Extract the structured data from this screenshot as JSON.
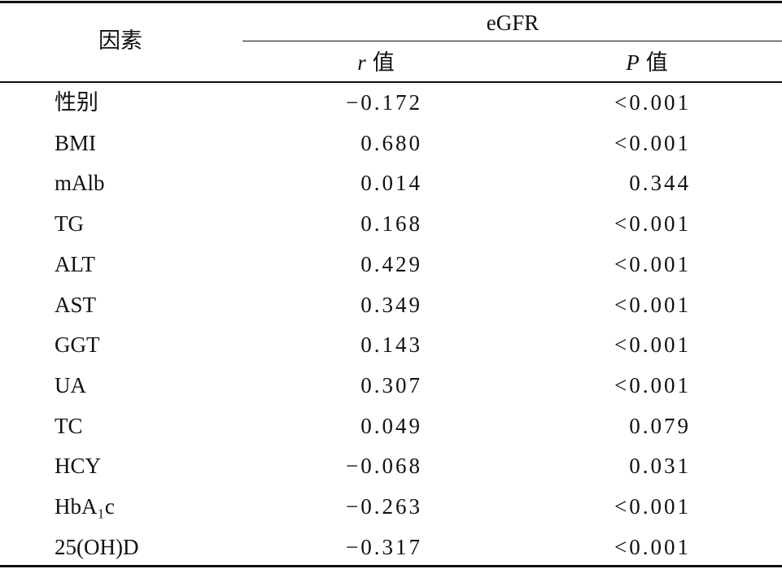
{
  "header": {
    "factor": "因素",
    "group": "eGFR",
    "columns": [
      {
        "symbol": "r",
        "label": "值"
      },
      {
        "symbol": "P",
        "label": "值"
      }
    ]
  },
  "table": {
    "rows": [
      [
        "性别",
        "−0.172",
        "<0.001"
      ],
      [
        "BMI",
        "0.680",
        "<0.001"
      ],
      [
        "mAlb",
        "0.014",
        "0.344"
      ],
      [
        "TG",
        "0.168",
        "<0.001"
      ],
      [
        "ALT",
        "0.429",
        "<0.001"
      ],
      [
        "AST",
        "0.349",
        "<0.001"
      ],
      [
        "GGT",
        "0.143",
        "<0.001"
      ],
      [
        "UA",
        "0.307",
        "<0.001"
      ],
      [
        "TC",
        "0.049",
        "0.079"
      ],
      [
        "HCY",
        "−0.068",
        "0.031"
      ],
      [
        "HbA₁c",
        "−0.263",
        "<0.001"
      ],
      [
        "25(OH)D",
        "−0.317",
        "<0.001"
      ]
    ]
  }
}
